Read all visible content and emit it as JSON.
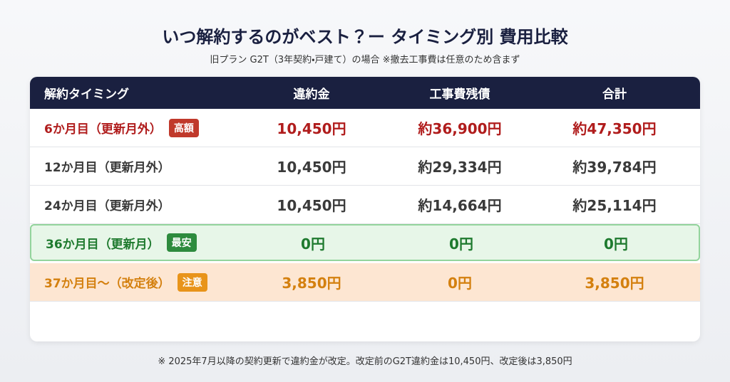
{
  "header": {
    "title": "いつ解約するのがベスト？ー タイミング別 費用比較",
    "subtitle": "旧プラン G2T（3年契約・戸建て）の場合 ※撤去工事費は任意のため含まず"
  },
  "table": {
    "columns": [
      "解約タイミング",
      "違約金",
      "工事費残債",
      "合計"
    ],
    "rows": [
      {
        "label": "6か月目（更新月外）",
        "badge": "高額",
        "cells": [
          "10,450円",
          "約36,900円",
          "約47,350円"
        ]
      },
      {
        "label": "12か月目（更新月外）",
        "cells": [
          "10,450円",
          "約29,334円",
          "約39,784円"
        ]
      },
      {
        "label": "24か月目（更新月外）",
        "cells": [
          "10,450円",
          "約14,664円",
          "約25,114円"
        ]
      },
      {
        "label": "36か月目（更新月）",
        "badge": "最安",
        "cells": [
          "0円",
          "0円",
          "0円"
        ]
      },
      {
        "label": "37か月目〜（改定後）",
        "badge": "注意",
        "cells": [
          "3,850円",
          "0円",
          "3,850円"
        ]
      }
    ]
  },
  "footnote": "※ 2025年7月以降の契約更新で違約金が改定。改定前のG2T違約金は10,450円、改定後は3,850円"
}
